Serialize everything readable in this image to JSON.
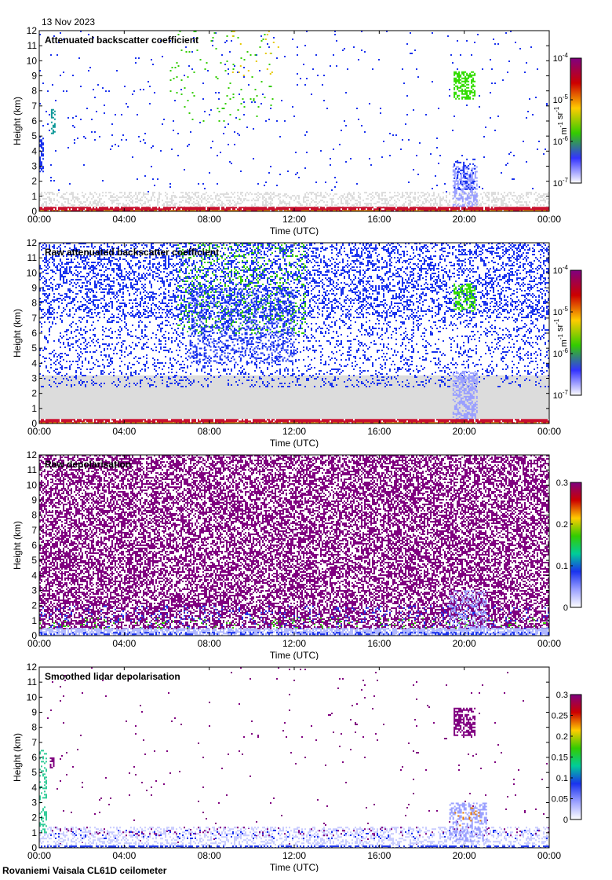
{
  "header": {
    "date": "13 Nov 2023"
  },
  "footer": {
    "site": "Rovaniemi Vaisala CL61D ceilometer"
  },
  "colors": {
    "sky_gray": "#dcdcdc",
    "ground_red": "#c8102e",
    "purple": "#800080",
    "green": "#33cc00",
    "blue": "#1a33ee"
  },
  "chart_data": [
    {
      "type": "heatmap",
      "title": "Attenuated backscatter coefficient",
      "xlabel": "Time (UTC)",
      "ylabel": "Height (km)",
      "xticks": [
        "00:00",
        "04:00",
        "08:00",
        "12:00",
        "16:00",
        "20:00",
        "00:00"
      ],
      "x_hours": [
        0,
        24
      ],
      "yticks": [
        "0",
        "1",
        "2",
        "3",
        "4",
        "5",
        "6",
        "7",
        "8",
        "9",
        "10",
        "11",
        "12"
      ],
      "ylim": [
        0,
        12
      ],
      "colorbar": {
        "scale": "log",
        "ticks": [
          "10",
          "10",
          "10",
          "10"
        ],
        "exponents": [
          "-7",
          "-6",
          "-5",
          "-4"
        ],
        "tick_values": [
          1e-07,
          1e-06,
          1e-05,
          0.0001
        ],
        "unit_main": [
          "m",
          " sr"
        ],
        "unit_exp": [
          "-1",
          "-1"
        ]
      },
      "features": [
        {
          "kind": "noise",
          "t0": 0,
          "t1": 24,
          "h0": 0.3,
          "h1": 1.3,
          "color": "#dcdcdc",
          "density": 0.35
        },
        {
          "kind": "noise",
          "t0": 0,
          "t1": 24,
          "h0": 1.3,
          "h1": 12,
          "color": "#1a33ee",
          "density": 0.012
        },
        {
          "kind": "noise",
          "t0": 6,
          "t1": 11,
          "h0": 6,
          "h1": 12,
          "color": "#33cc00",
          "density": 0.02
        },
        {
          "kind": "noise",
          "t0": 9,
          "t1": 11.5,
          "h0": 9,
          "h1": 12,
          "color": "#e6c800",
          "density": 0.02
        },
        {
          "kind": "box",
          "t0": 0.0,
          "t1": 0.2,
          "h0": 2.5,
          "h1": 5.0,
          "color": "#1a33ee",
          "density": 0.6
        },
        {
          "kind": "box",
          "t0": 0.55,
          "t1": 0.75,
          "h0": 5.2,
          "h1": 6.8,
          "color": "#119999",
          "density": 0.6
        },
        {
          "kind": "box",
          "t0": 19.45,
          "t1": 20.6,
          "h0": 0.3,
          "h1": 3.0,
          "color": "#9aa0ff",
          "density": 0.55
        },
        {
          "kind": "box",
          "t0": 19.5,
          "t1": 20.5,
          "h0": 1.5,
          "h1": 3.5,
          "color": "#1a33ee",
          "density": 0.25
        },
        {
          "kind": "box",
          "t0": 19.5,
          "t1": 20.5,
          "h0": 7.5,
          "h1": 9.3,
          "color": "#33dd00",
          "density": 0.6
        },
        {
          "kind": "band",
          "t0": 0,
          "t1": 24,
          "h0": 0.05,
          "h1": 0.3,
          "color": "#c8102e",
          "density": 0.9
        },
        {
          "kind": "band",
          "t0": 0,
          "t1": 24,
          "h0": 0.0,
          "h1": 0.08,
          "color": "#e6a000",
          "density": 0.6
        }
      ]
    },
    {
      "type": "heatmap",
      "title": "Raw attenuated backscatter coefficient",
      "xlabel": "Time (UTC)",
      "ylabel": "Height (km)",
      "xticks": [
        "00:00",
        "04:00",
        "08:00",
        "12:00",
        "16:00",
        "20:00",
        "00:00"
      ],
      "x_hours": [
        0,
        24
      ],
      "yticks": [
        "0",
        "1",
        "2",
        "3",
        "4",
        "5",
        "6",
        "7",
        "8",
        "9",
        "10",
        "11",
        "12"
      ],
      "ylim": [
        0,
        12
      ],
      "colorbar": {
        "scale": "log",
        "ticks": [
          "10",
          "10",
          "10",
          "10"
        ],
        "exponents": [
          "-7",
          "-6",
          "-5",
          "-4"
        ],
        "tick_values": [
          1e-07,
          1e-06,
          1e-05,
          0.0001
        ],
        "unit_main": [
          "m",
          " sr"
        ],
        "unit_exp": [
          "-1",
          "-1"
        ]
      },
      "features": [
        {
          "kind": "fill",
          "t0": 0,
          "t1": 24,
          "h0": 0.3,
          "h1": 3.2,
          "color": "#dcdcdc"
        },
        {
          "kind": "noise",
          "t0": 0,
          "t1": 24,
          "h0": 2.5,
          "h1": 12,
          "color": "#1a33ee",
          "density": 0.16
        },
        {
          "kind": "noise",
          "t0": 0,
          "t1": 24,
          "h0": 7,
          "h1": 12,
          "color": "#1a33ee",
          "density": 0.2
        },
        {
          "kind": "noise",
          "t0": 6.5,
          "t1": 12.5,
          "h0": 6,
          "h1": 12,
          "color": "#33cc00",
          "density": 0.12
        },
        {
          "kind": "noise",
          "t0": 7,
          "t1": 12,
          "h0": 4,
          "h1": 9,
          "color": "#1a33ee",
          "density": 0.25
        },
        {
          "kind": "box",
          "t0": 19.45,
          "t1": 20.6,
          "h0": 0.3,
          "h1": 3.5,
          "color": "#9aa0ff",
          "density": 0.55
        },
        {
          "kind": "box",
          "t0": 19.5,
          "t1": 20.5,
          "h0": 7.5,
          "h1": 9.3,
          "color": "#33dd00",
          "density": 0.5
        },
        {
          "kind": "band",
          "t0": 0,
          "t1": 24,
          "h0": 0.05,
          "h1": 0.3,
          "color": "#c8102e",
          "density": 0.9
        },
        {
          "kind": "band",
          "t0": 0,
          "t1": 24,
          "h0": 0.0,
          "h1": 0.08,
          "color": "#e6a000",
          "density": 0.6
        }
      ]
    },
    {
      "type": "heatmap",
      "title": "Raw depolarisation",
      "xlabel": "Time (UTC)",
      "ylabel": "Height (km)",
      "xticks": [
        "00:00",
        "04:00",
        "08:00",
        "12:00",
        "16:00",
        "20:00",
        "00:00"
      ],
      "x_hours": [
        0,
        24
      ],
      "yticks": [
        "0",
        "1",
        "2",
        "3",
        "4",
        "5",
        "6",
        "7",
        "8",
        "9",
        "10",
        "11",
        "12"
      ],
      "ylim": [
        0,
        12
      ],
      "colorbar": {
        "scale": "linear",
        "ticks": [
          "0",
          "0.1",
          "0.2",
          "0.3"
        ],
        "tick_values": [
          0,
          0.1,
          0.2,
          0.3
        ],
        "vmin": 0,
        "vmax": 0.3
      },
      "features": [
        {
          "kind": "noise",
          "t0": 0,
          "t1": 24,
          "h0": 0.5,
          "h1": 12,
          "color": "#800080",
          "density": 0.55
        },
        {
          "kind": "noise",
          "t0": 0,
          "t1": 24,
          "h0": 0.5,
          "h1": 2.0,
          "color": "#1a33ee",
          "density": 0.06
        },
        {
          "kind": "noise",
          "t0": 0,
          "t1": 24,
          "h0": 0.5,
          "h1": 1.2,
          "color": "#33cc00",
          "density": 0.06
        },
        {
          "kind": "box",
          "t0": 19.3,
          "t1": 21.0,
          "h0": 0.5,
          "h1": 3.0,
          "color": "#9aa0ff",
          "density": 0.3
        },
        {
          "kind": "band",
          "t0": 0,
          "t1": 24,
          "h0": 0.0,
          "h1": 0.5,
          "color": "#b0b8ff",
          "density": 0.7
        },
        {
          "kind": "band",
          "t0": 0,
          "t1": 24,
          "h0": 0.1,
          "h1": 0.25,
          "color": "#1a33ee",
          "density": 0.35
        }
      ]
    },
    {
      "type": "heatmap",
      "title": "Smoothed lidar depolarisation",
      "xlabel": "Time (UTC)",
      "ylabel": "Height (km)",
      "xticks": [
        "00:00",
        "04:00",
        "08:00",
        "12:00",
        "16:00",
        "20:00",
        "00:00"
      ],
      "x_hours": [
        0,
        24
      ],
      "yticks": [
        "0",
        "1",
        "2",
        "3",
        "4",
        "5",
        "6",
        "7",
        "8",
        "9",
        "10",
        "11",
        "12"
      ],
      "ylim": [
        0,
        12
      ],
      "colorbar": {
        "scale": "linear",
        "ticks": [
          "0",
          "0.05",
          "0.1",
          "0.15",
          "0.2",
          "0.25",
          "0.3"
        ],
        "tick_values": [
          0,
          0.05,
          0.1,
          0.15,
          0.2,
          0.25,
          0.3
        ],
        "vmin": 0,
        "vmax": 0.3
      },
      "features": [
        {
          "kind": "noise",
          "t0": 0,
          "t1": 24,
          "h0": 0.3,
          "h1": 12,
          "color": "#800080",
          "density": 0.006
        },
        {
          "kind": "noise",
          "t0": 0,
          "t1": 24,
          "h0": 0.2,
          "h1": 1.4,
          "color": "#c8ccff",
          "density": 0.35
        },
        {
          "kind": "noise",
          "t0": 0,
          "t1": 24,
          "h0": 0.6,
          "h1": 1.2,
          "color": "#1a33ee",
          "density": 0.06
        },
        {
          "kind": "noise",
          "t0": 0,
          "t1": 24,
          "h0": 0.8,
          "h1": 1.4,
          "color": "#800080",
          "density": 0.05
        },
        {
          "kind": "box",
          "t0": 0.0,
          "t1": 0.3,
          "h0": 1.0,
          "h1": 6.5,
          "color": "#33cc99",
          "density": 0.3
        },
        {
          "kind": "box",
          "t0": 0.5,
          "t1": 0.7,
          "h0": 5.3,
          "h1": 6.0,
          "color": "#800080",
          "density": 0.6
        },
        {
          "kind": "box",
          "t0": 19.3,
          "t1": 21.0,
          "h0": 0.4,
          "h1": 3.0,
          "color": "#9aa0ff",
          "density": 0.45
        },
        {
          "kind": "box",
          "t0": 19.4,
          "t1": 20.8,
          "h0": 1.5,
          "h1": 3.0,
          "color": "#e67800",
          "density": 0.08
        },
        {
          "kind": "box",
          "t0": 19.5,
          "t1": 20.5,
          "h0": 7.5,
          "h1": 9.3,
          "color": "#800080",
          "density": 0.6
        },
        {
          "kind": "band",
          "t0": 0,
          "t1": 24,
          "h0": 0.0,
          "h1": 0.15,
          "color": "#1a33ee",
          "density": 0.6
        }
      ]
    }
  ]
}
